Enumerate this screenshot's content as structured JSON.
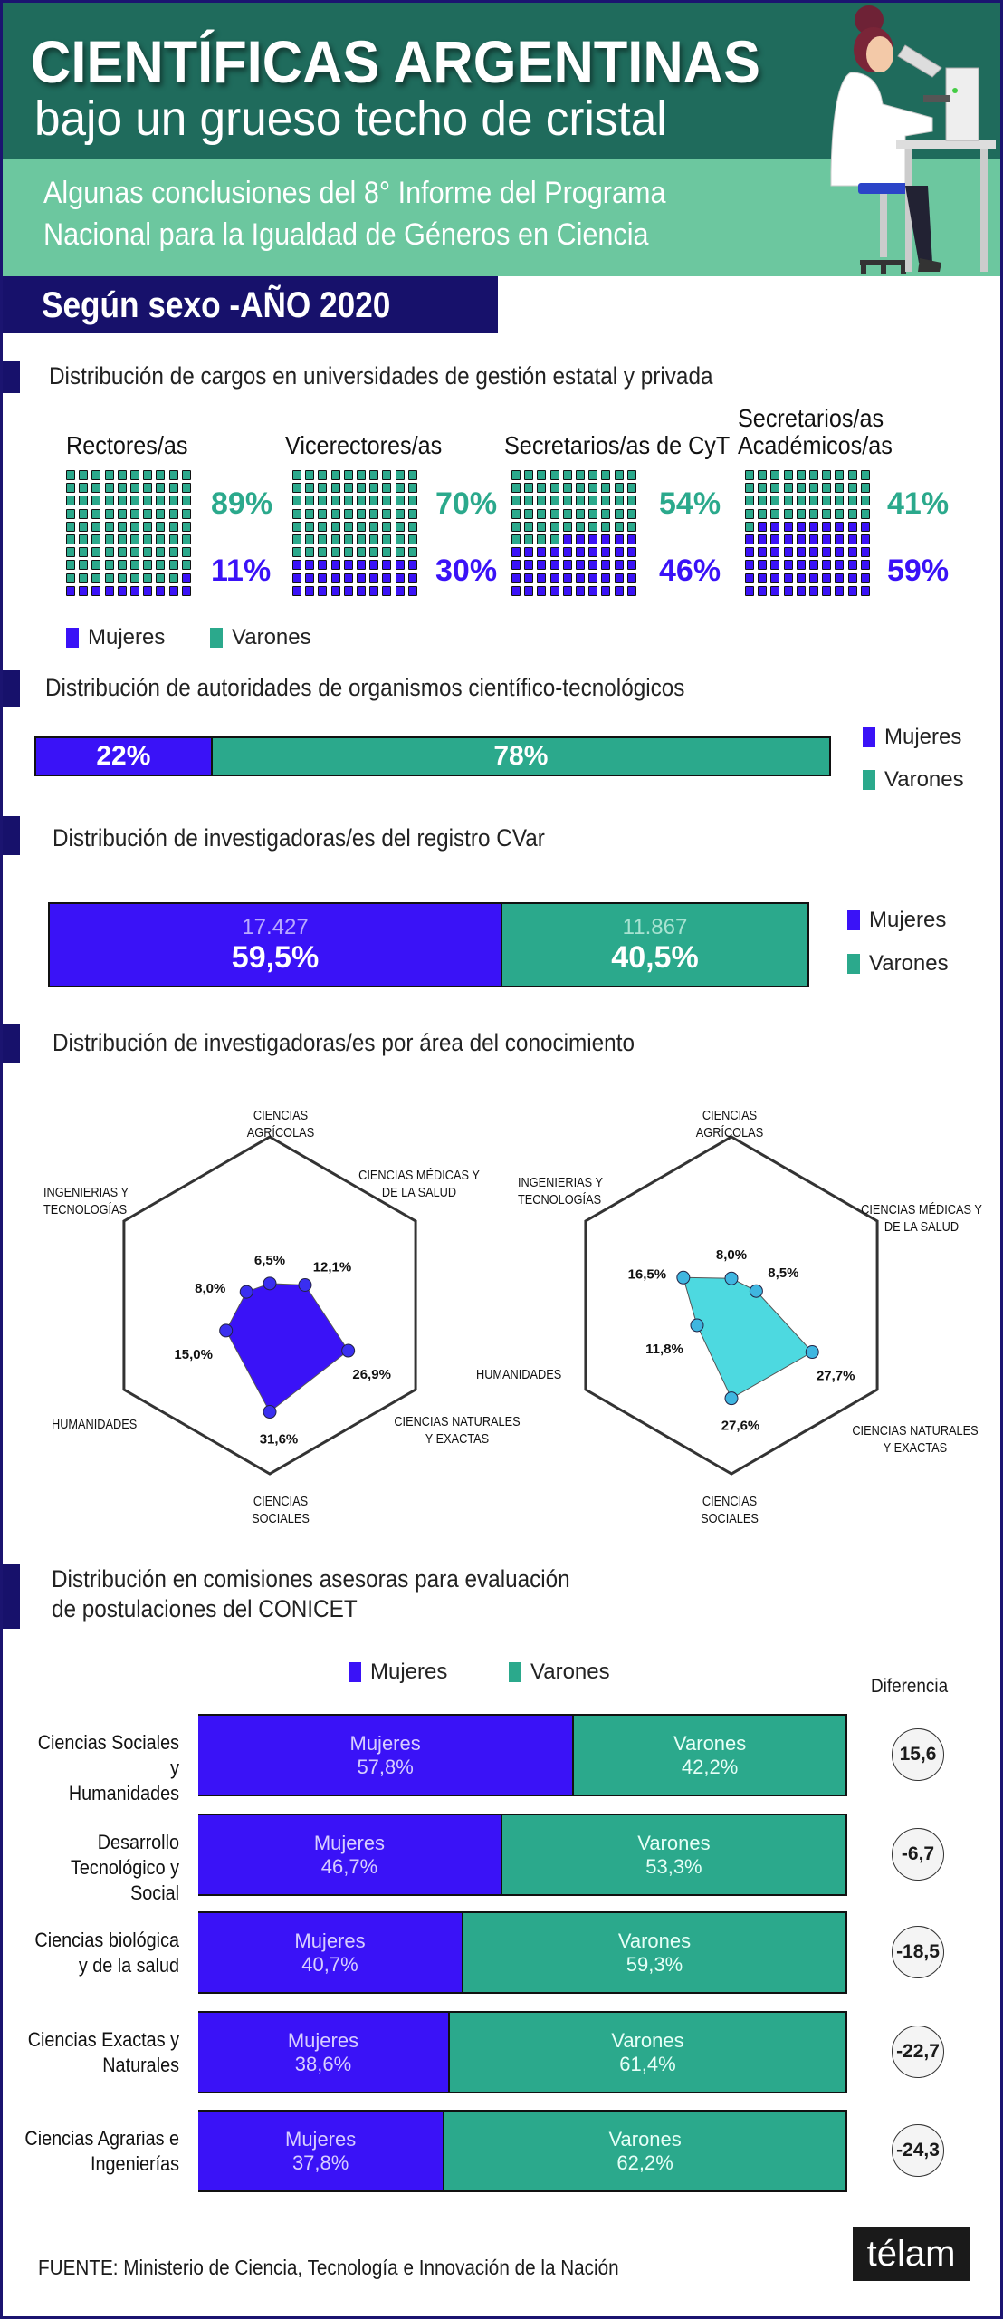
{
  "header": {
    "title": "CIENTÍFICAS ARGENTINAS",
    "subtitle": "bajo un grueso techo de cristal",
    "intro_line1": "Algunas conclusiones del 8° Informe del Programa",
    "intro_line2": "Nacional para la Igualdad de Géneros en Ciencia",
    "banner": "Según sexo -AÑO 2020"
  },
  "legend": {
    "mujeres": "Mujeres",
    "varones": "Varones"
  },
  "colors": {
    "mujeres": "#3a12f7",
    "varones": "#2ba98c",
    "varones_radar": "#4dd9e0",
    "navy": "#17116b"
  },
  "chart_data": [
    {
      "type": "waffle",
      "title": "Distribución de cargos en universidades de gestión estatal y privada",
      "groups": [
        {
          "label": [
            "Rectores/as"
          ],
          "varones": 89,
          "mujeres": 11,
          "varones_label": "89%",
          "mujeres_label": "11%"
        },
        {
          "label": [
            "Vicerectores/as"
          ],
          "varones": 70,
          "mujeres": 30,
          "varones_label": "70%",
          "mujeres_label": "30%"
        },
        {
          "label": [
            "Secretarios/as de CyT"
          ],
          "varones": 54,
          "mujeres": 46,
          "varones_label": "54%",
          "mujeres_label": "46%"
        },
        {
          "label": [
            "Secretarios/as",
            "Académicos/as"
          ],
          "varones": 41,
          "mujeres": 59,
          "varones_label": "41%",
          "mujeres_label": "59%"
        }
      ]
    },
    {
      "type": "bar",
      "stacked": true,
      "title": "Distribución de autoridades de organismos científico-tecnológicos",
      "mujeres": 22,
      "varones": 78,
      "mujeres_label": "22%",
      "varones_label": "78%"
    },
    {
      "type": "bar",
      "stacked": true,
      "title": "Distribución de investigadoras/es del registro CVar",
      "mujeres": 59.5,
      "varones": 40.5,
      "mujeres_count": "17.427",
      "varones_count": "11.867",
      "mujeres_label": "59,5%",
      "varones_label": "40,5%"
    },
    {
      "type": "radar",
      "title": "Distribución de investigadoras/es por área del conocimiento",
      "axes": [
        [
          "CIENCIAS",
          "AGRÍCOLAS"
        ],
        [
          "CIENCIAS MÉDICAS Y",
          "DE LA SALUD"
        ],
        [
          "CIENCIAS NATURALES",
          "Y EXACTAS"
        ],
        [
          "CIENCIAS",
          "SOCIALES"
        ],
        [
          "HUMANIDADES"
        ],
        [
          "INGENIERIAS Y",
          "TECNOLOGÍAS"
        ]
      ],
      "rmax": 50,
      "series": [
        {
          "values": [
            6.5,
            12.1,
            26.9,
            31.6,
            15.0,
            8.0
          ],
          "labels": [
            "6,5%",
            "12,1%",
            "26,9%",
            "31,6%",
            "15,0%",
            "8,0%"
          ]
        },
        {
          "values": [
            8.0,
            8.5,
            27.7,
            27.6,
            11.8,
            16.5
          ],
          "labels": [
            "8,0%",
            "8,5%",
            "27,7%",
            "27,6%",
            "11,8%",
            "16,5%"
          ]
        }
      ]
    },
    {
      "type": "bar",
      "stacked": true,
      "title": [
        "Distribución en comisiones asesoras para evaluación",
        "de postulaciones del CONICET"
      ],
      "diff_header": "Diferencia",
      "rows": [
        {
          "label": [
            "Ciencias Sociales y",
            "Humanidades"
          ],
          "mujeres": 57.8,
          "varones": 42.2,
          "mujeres_label": "57,8%",
          "varones_label": "42,2%",
          "diff": "15,6"
        },
        {
          "label": [
            "Desarrollo",
            "Tecnológico y Social"
          ],
          "mujeres": 46.7,
          "varones": 53.3,
          "mujeres_label": "46,7%",
          "varones_label": "53,3%",
          "diff": "-6,7"
        },
        {
          "label": [
            "Ciencias biológica",
            "y de la salud"
          ],
          "mujeres": 40.7,
          "varones": 59.3,
          "mujeres_label": "40,7%",
          "varones_label": "59,3%",
          "diff": "-18,5"
        },
        {
          "label": [
            "Ciencias Exactas y",
            "Naturales"
          ],
          "mujeres": 38.6,
          "varones": 61.4,
          "mujeres_label": "38,6%",
          "varones_label": "61,4%",
          "diff": "-22,7"
        },
        {
          "label": [
            "Ciencias Agrarias e",
            "Ingenierías"
          ],
          "mujeres": 37.8,
          "varones": 62.2,
          "mujeres_label": "37,8%",
          "varones_label": "62,2%",
          "diff": "-24,3"
        }
      ]
    }
  ],
  "footer": {
    "source": "FUENTE: Ministerio de Ciencia, Tecnología e Innovación de la Nación",
    "logo": "télam"
  }
}
